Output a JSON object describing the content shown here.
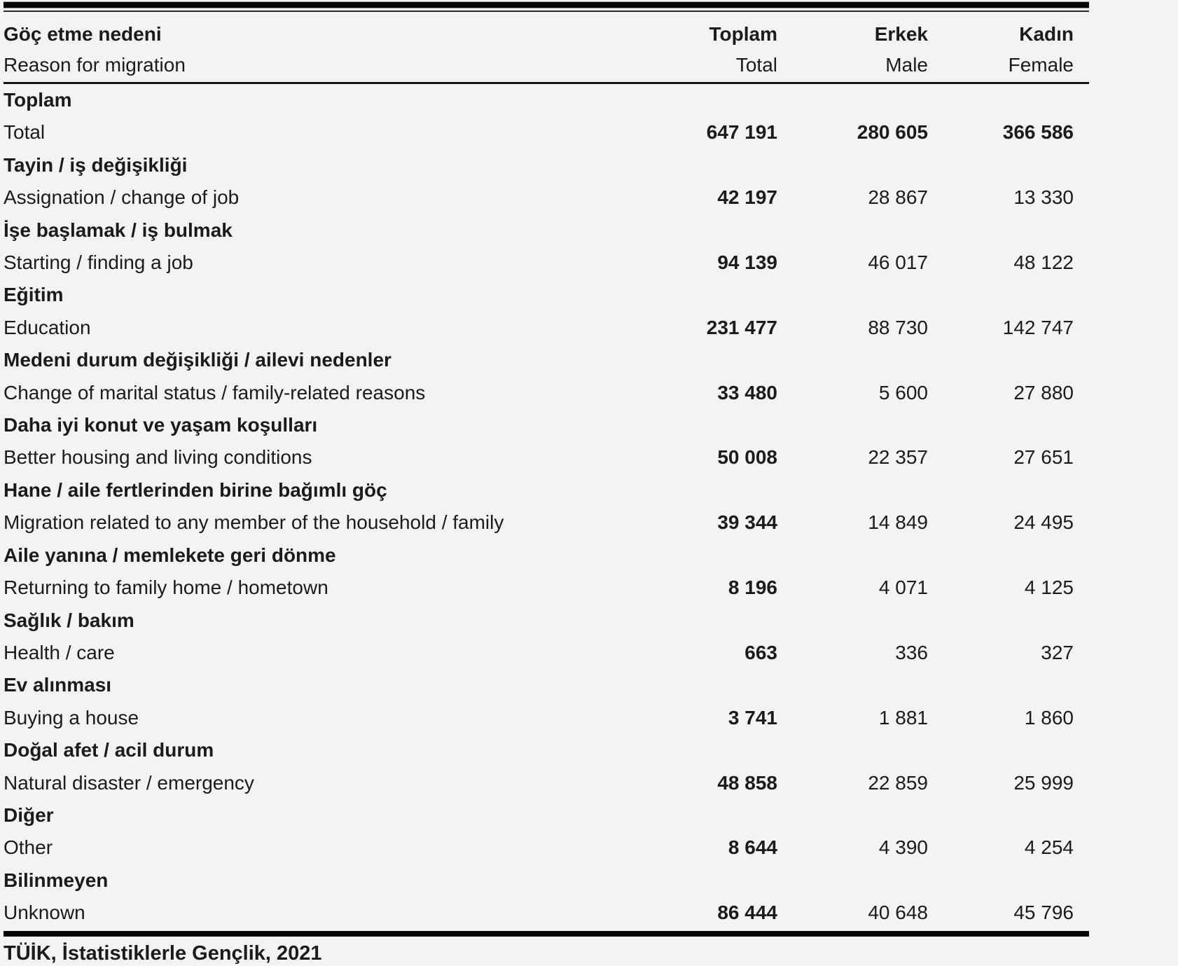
{
  "page": {
    "colors": {
      "background": "#f4f3f1",
      "text": "#1b1b1b",
      "rule": "#070707"
    },
    "source_note": "TÜİK, İstatistiklerle Gençlik, 2021"
  },
  "table": {
    "header": {
      "label_tr": "Göç etme nedeni",
      "label_en": "Reason for migration",
      "columns": [
        {
          "tr": "Toplam",
          "en": "Total"
        },
        {
          "tr": "Erkek",
          "en": "Male"
        },
        {
          "tr": "Kadın",
          "en": "Female"
        }
      ]
    },
    "rows": [
      {
        "tr": "Toplam",
        "en": "Total",
        "total": "647 191",
        "male": "280 605",
        "female": "366 586",
        "emphasis": "all"
      },
      {
        "tr": "Tayin / iş değişikliği",
        "en": "Assignation / change of job",
        "total": "42 197",
        "male": "28 867",
        "female": "13 330",
        "emphasis": "total"
      },
      {
        "tr": "İşe başlamak / iş bulmak",
        "en": "Starting / finding a job",
        "total": "94 139",
        "male": "46 017",
        "female": "48 122",
        "emphasis": "total"
      },
      {
        "tr": "Eğitim",
        "en": "Education",
        "total": "231 477",
        "male": "88 730",
        "female": "142 747",
        "emphasis": "total"
      },
      {
        "tr": "Medeni durum değişikliği / ailevi nedenler",
        "en": "Change of marital status / family-related reasons",
        "total": "33 480",
        "male": "5 600",
        "female": "27 880",
        "emphasis": "total"
      },
      {
        "tr": "Daha iyi konut ve yaşam koşulları",
        "en": "Better housing and living conditions",
        "total": "50 008",
        "male": "22 357",
        "female": "27 651",
        "emphasis": "total"
      },
      {
        "tr": "Hane / aile fertlerinden birine bağımlı göç",
        "en": "Migration related to any member of the household / family",
        "total": "39 344",
        "male": "14 849",
        "female": "24 495",
        "emphasis": "total"
      },
      {
        "tr": "Aile yanına / memlekete geri dönme",
        "en": "Returning to family home / hometown",
        "total": "8 196",
        "male": "4 071",
        "female": "4 125",
        "emphasis": "total"
      },
      {
        "tr": "Sağlık / bakım",
        "en": "Health / care",
        "total": "663",
        "male": "336",
        "female": "327",
        "emphasis": "total"
      },
      {
        "tr": "Ev alınması",
        "en": "Buying a house",
        "total": "3 741",
        "male": "1 881",
        "female": "1 860",
        "emphasis": "total"
      },
      {
        "tr": "Doğal afet / acil durum",
        "en": "Natural disaster / emergency",
        "total": "48 858",
        "male": "22 859",
        "female": "25 999",
        "emphasis": "total"
      },
      {
        "tr": "Diğer",
        "en": "Other",
        "total": "8 644",
        "male": "4 390",
        "female": "4 254",
        "emphasis": "total"
      },
      {
        "tr": "Bilinmeyen",
        "en": "Unknown",
        "total": "86 444",
        "male": "40 648",
        "female": "45 796",
        "emphasis": "total"
      }
    ]
  }
}
